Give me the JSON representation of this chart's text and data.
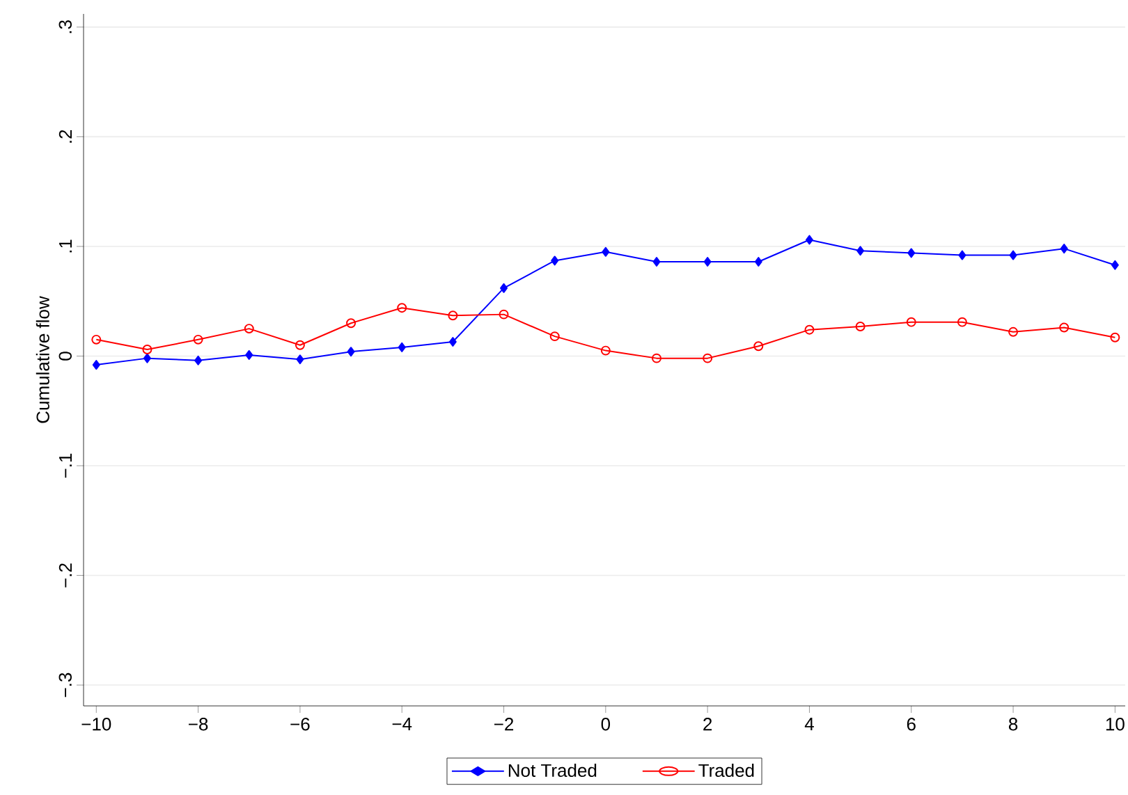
{
  "chart_data": {
    "type": "line",
    "ylabel": "Cumulative flow",
    "x": [
      -10,
      -9,
      -8,
      -7,
      -6,
      -5,
      -4,
      -3,
      -2,
      -1,
      0,
      1,
      2,
      3,
      4,
      5,
      6,
      7,
      8,
      9,
      10
    ],
    "series": [
      {
        "name": "Not Traded",
        "color": "#0000ff",
        "marker": "diamond",
        "values": [
          -0.008,
          -0.002,
          -0.004,
          0.001,
          -0.003,
          0.004,
          0.008,
          0.013,
          0.062,
          0.087,
          0.095,
          0.086,
          0.086,
          0.086,
          0.106,
          0.096,
          0.094,
          0.092,
          0.092,
          0.098,
          0.083
        ]
      },
      {
        "name": "Traded",
        "color": "#ff0000",
        "marker": "circle",
        "values": [
          0.015,
          0.006,
          0.015,
          0.025,
          0.01,
          0.03,
          0.044,
          0.037,
          0.038,
          0.018,
          0.005,
          -0.002,
          -0.002,
          0.009,
          0.024,
          0.027,
          0.031,
          0.031,
          0.022,
          0.026,
          0.017
        ]
      }
    ],
    "xlim": [
      -10.25,
      10.2
    ],
    "ylim": [
      -0.319,
      0.312
    ],
    "xticks": [
      {
        "value": -10,
        "label": "−10"
      },
      {
        "value": -8,
        "label": "−8"
      },
      {
        "value": -6,
        "label": "−6"
      },
      {
        "value": -4,
        "label": "−4"
      },
      {
        "value": -2,
        "label": "−2"
      },
      0,
      2,
      4,
      6,
      8,
      10
    ],
    "yticks": [
      {
        "value": -0.3,
        "label": "−.3"
      },
      {
        "value": -0.2,
        "label": "−.2"
      },
      {
        "value": -0.1,
        "label": "−.1"
      },
      0,
      {
        "value": 0.1,
        "label": ".1"
      },
      {
        "value": 0.2,
        "label": ".2"
      },
      {
        "value": 0.3,
        "label": ".3"
      }
    ],
    "grid": "y",
    "legend": "bottom",
    "line_style": "solid"
  }
}
